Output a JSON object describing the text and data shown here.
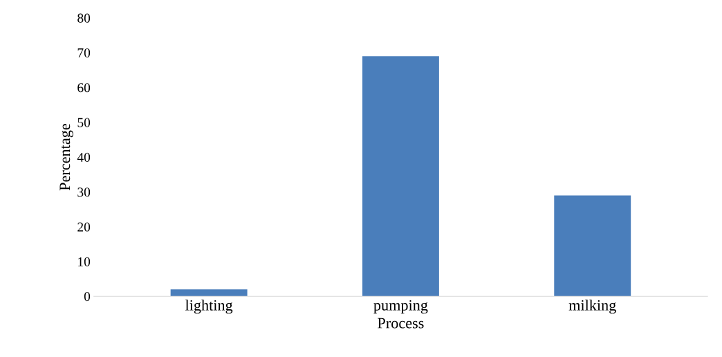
{
  "chart_data": {
    "type": "bar",
    "xlabel": "Process",
    "ylabel": "Percentage",
    "categories": [
      "lighting",
      "pumping",
      "milking"
    ],
    "values": [
      2,
      69,
      29
    ],
    "color": "#4a7ebb",
    "ylim": [
      0,
      80
    ],
    "yticks": [
      0,
      10,
      20,
      30,
      40,
      50,
      60,
      70,
      80
    ],
    "grid": false
  }
}
